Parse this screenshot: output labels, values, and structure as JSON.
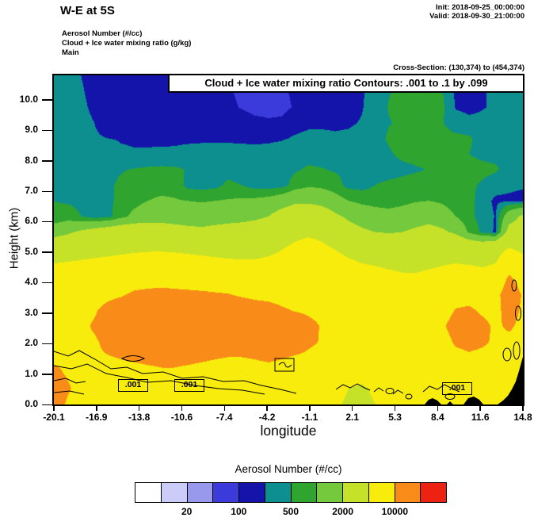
{
  "header": {
    "title": "W-E at 5S",
    "init": "Init: 2018-09-25_00:00:00",
    "valid": "Valid: 2018-09-30_21:00:00",
    "field_lines": [
      "Aerosol Number  (#/cc)",
      "Cloud + Ice water mixing ratio  (g/kg)",
      "Main"
    ],
    "cross_section": "Cross-Section: (130,374) to (454,374)"
  },
  "plot": {
    "banner": "Cloud + Ice water mixing ratio Contours: .001 to .1 by .099",
    "xlabel": "longitude",
    "ylabel": "Height (km)",
    "x_ticks": [
      "-20.1",
      "-16.9",
      "-13.8",
      "-10.6",
      "-7.4",
      "-4.2",
      "-1.1",
      "2.1",
      "5.3",
      "8.4",
      "11.6",
      "14.8"
    ],
    "y_ticks": [
      "0.0",
      "1.0",
      "2.0",
      "3.0",
      "4.0",
      "5.0",
      "6.0",
      "7.0",
      "8.0",
      "9.0",
      "10.0"
    ],
    "contour_labels": [
      ".001",
      ".001",
      ".001"
    ]
  },
  "colorbar": {
    "title": "Aerosol Number  (#/cc)",
    "tick_labels": [
      "20",
      "100",
      "500",
      "2000",
      "10000"
    ],
    "tick_positions": [
      2,
      4,
      6,
      8,
      10
    ]
  },
  "chart_data": {
    "type": "heatmap",
    "title": "W-E at 5S",
    "fill_variable": "Aerosol Number (#/cc)",
    "line_variable": "Cloud + Ice water mixing ratio (g/kg)",
    "contour_note": "Cloud + Ice water mixing ratio Contours: .001 to .1 by .099",
    "xlabel": "longitude",
    "ylabel": "Height (km)",
    "x_range": [
      -20.1,
      14.8
    ],
    "y_range": [
      0,
      10.8
    ],
    "x_tick_values": [
      -20.1,
      -16.9,
      -13.8,
      -10.6,
      -7.4,
      -4.2,
      -1.1,
      2.1,
      5.3,
      8.4,
      11.6,
      14.8
    ],
    "y_tick_values": [
      0,
      1,
      2,
      3,
      4,
      5,
      6,
      7,
      8,
      9,
      10
    ],
    "levels": [
      10,
      20,
      50,
      100,
      200,
      500,
      1000,
      2000,
      5000,
      10000,
      20000
    ],
    "level_colors": [
      "#ffffff",
      "#ccccf8",
      "#9898ec",
      "#3b3bdc",
      "#1414aa",
      "#0e8f8f",
      "#2fa42f",
      "#74c93c",
      "#c6e228",
      "#f8ec0c",
      "#f98c18",
      "#ee2212"
    ],
    "colorbar_boundary_labels": [
      20,
      100,
      500,
      2000,
      10000
    ],
    "terrain_color": "#000000",
    "overlay_contour_levels": ".001 to .1 by .099",
    "overlay_contour_label": ".001",
    "grid_note": "aerosol number (#/cc), rows bottom(0 km) to top(10.8 km), 36 columns spanning lon -20.1 to 14.8",
    "values_grid": [
      [
        12000,
        9500,
        8000,
        7500,
        7200,
        7000,
        7200,
        7500,
        7800,
        8000,
        7800,
        7500,
        7200,
        7000,
        7000,
        7200,
        7500,
        7300,
        7000,
        6800,
        6500,
        5500,
        4500,
        4200,
        5000,
        6000,
        6500,
        6800,
        7000,
        7000,
        6800,
        6500,
        6800,
        7000,
        7200,
        7500
      ],
      [
        13000,
        10500,
        8500,
        8000,
        7800,
        7600,
        7800,
        8000,
        8200,
        8500,
        8200,
        8000,
        7800,
        7500,
        7500,
        7800,
        8000,
        7800,
        7500,
        7200,
        7000,
        6000,
        5000,
        4600,
        5500,
        6500,
        7000,
        7200,
        7500,
        7500,
        7200,
        7000,
        7200,
        7500,
        7800,
        8000
      ],
      [
        11000,
        9500,
        8800,
        8500,
        8500,
        8800,
        9000,
        9200,
        9500,
        9500,
        9200,
        9000,
        8800,
        8500,
        8500,
        8800,
        9000,
        8800,
        8500,
        8200,
        8000,
        7200,
        6500,
        6000,
        6800,
        7500,
        7800,
        8000,
        8200,
        8200,
        8000,
        7800,
        8000,
        8200,
        8500,
        8800
      ],
      [
        9000,
        9200,
        9500,
        9500,
        9800,
        10200,
        10500,
        10800,
        11000,
        11000,
        10800,
        10500,
        10200,
        10000,
        10000,
        10200,
        10500,
        10200,
        9800,
        9500,
        9200,
        8800,
        8500,
        8200,
        8500,
        8800,
        9000,
        8800,
        8500,
        8500,
        9000,
        9500,
        9200,
        9000,
        9200,
        9000
      ],
      [
        8500,
        8800,
        9200,
        9500,
        11000,
        12500,
        13000,
        13500,
        13800,
        14000,
        13800,
        13500,
        13200,
        13000,
        13000,
        13200,
        13000,
        12500,
        11500,
        10500,
        9800,
        9500,
        9200,
        9000,
        8800,
        8500,
        8200,
        8000,
        8200,
        8500,
        10500,
        11000,
        10500,
        9500,
        9200,
        9000
      ],
      [
        8000,
        8500,
        9000,
        10500,
        12500,
        13500,
        14200,
        14800,
        15000,
        15000,
        14800,
        14500,
        14200,
        14000,
        14000,
        14200,
        13800,
        13000,
        12000,
        10800,
        9800,
        9500,
        9200,
        9000,
        8800,
        8500,
        8200,
        8000,
        8500,
        9500,
        11500,
        11800,
        10800,
        9500,
        10500,
        9200
      ],
      [
        7500,
        8000,
        8500,
        9500,
        11500,
        12800,
        13500,
        13800,
        14000,
        13800,
        13500,
        13200,
        13000,
        12800,
        12500,
        12000,
        11500,
        10500,
        9800,
        9500,
        9200,
        8800,
        8500,
        8200,
        8000,
        7800,
        7500,
        7500,
        7800,
        8200,
        10200,
        10500,
        9500,
        9000,
        11500,
        9500
      ],
      [
        7000,
        7200,
        7500,
        8000,
        8800,
        9500,
        10800,
        11200,
        11500,
        11200,
        11000,
        10800,
        10500,
        10200,
        9500,
        9000,
        8800,
        8500,
        8200,
        8000,
        7800,
        7500,
        7200,
        7000,
        6800,
        6500,
        6500,
        6800,
        7000,
        7200,
        8500,
        8800,
        8500,
        9000,
        12000,
        9800
      ],
      [
        6000,
        6200,
        6500,
        6800,
        7200,
        7500,
        7800,
        8000,
        8200,
        8000,
        7800,
        7500,
        7200,
        7000,
        6800,
        6800,
        7000,
        7200,
        7500,
        7800,
        7500,
        7000,
        6500,
        6200,
        6000,
        5800,
        5500,
        5500,
        5800,
        6000,
        6500,
        6800,
        6500,
        7000,
        10800,
        8500
      ],
      [
        5000,
        5200,
        5400,
        5600,
        5800,
        6000,
        6200,
        6400,
        6500,
        6400,
        6200,
        6000,
        5800,
        5600,
        5500,
        5500,
        5800,
        6200,
        6800,
        7200,
        6800,
        6200,
        5500,
        5000,
        4800,
        4500,
        4300,
        4200,
        4500,
        4800,
        5000,
        4800,
        4500,
        5000,
        7800,
        6200
      ],
      [
        3000,
        3200,
        3500,
        3800,
        4000,
        4200,
        4400,
        4500,
        4500,
        4400,
        4200,
        4000,
        3800,
        3600,
        3500,
        3600,
        4000,
        4800,
        5500,
        6000,
        5500,
        4800,
        4000,
        3600,
        3400,
        3200,
        3200,
        3400,
        3600,
        3800,
        3500,
        3200,
        3000,
        3500,
        5000,
        4200
      ],
      [
        1500,
        1800,
        2200,
        2500,
        2800,
        3000,
        3000,
        2800,
        2600,
        2500,
        2400,
        2300,
        2400,
        2500,
        2500,
        2600,
        2800,
        3500,
        4200,
        4500,
        4200,
        3200,
        2500,
        2200,
        2000,
        1900,
        2000,
        2200,
        2400,
        2200,
        1800,
        900,
        400,
        150,
        2500,
        2600
      ],
      [
        600,
        700,
        500,
        300,
        350,
        800,
        1200,
        1500,
        1600,
        1500,
        1400,
        1400,
        1500,
        1600,
        1700,
        1800,
        2000,
        2500,
        2800,
        3000,
        2800,
        2200,
        1800,
        1500,
        1300,
        1200,
        1300,
        1500,
        1600,
        1400,
        1000,
        600,
        350,
        180,
        1500,
        2200
      ],
      [
        500,
        450,
        400,
        380,
        420,
        600,
        800,
        1000,
        1100,
        1050,
        1000,
        950,
        1000,
        1050,
        1100,
        1150,
        1250,
        1500,
        1800,
        1800,
        1600,
        1300,
        1000,
        850,
        800,
        800,
        850,
        950,
        1000,
        900,
        700,
        650,
        300,
        150,
        150,
        120
      ],
      [
        420,
        400,
        380,
        400,
        450,
        550,
        650,
        750,
        800,
        780,
        350,
        320,
        350,
        600,
        500,
        300,
        280,
        300,
        700,
        900,
        850,
        700,
        350,
        330,
        500,
        600,
        650,
        700,
        720,
        680,
        620,
        580,
        450,
        300,
        250,
        230
      ],
      [
        350,
        340,
        360,
        400,
        440,
        480,
        520,
        560,
        580,
        560,
        480,
        420,
        380,
        320,
        280,
        270,
        280,
        320,
        450,
        550,
        520,
        450,
        380,
        350,
        320,
        300,
        380,
        450,
        520,
        560,
        600,
        620,
        600,
        550,
        350,
        300
      ],
      [
        300,
        290,
        300,
        310,
        280,
        220,
        210,
        215,
        220,
        230,
        260,
        290,
        310,
        300,
        280,
        260,
        270,
        300,
        350,
        380,
        360,
        320,
        300,
        290,
        300,
        450,
        600,
        650,
        650,
        620,
        600,
        500,
        420,
        400,
        380,
        360
      ],
      [
        220,
        215,
        210,
        205,
        200,
        190,
        185,
        180,
        175,
        170,
        165,
        160,
        160,
        158,
        158,
        160,
        165,
        180,
        220,
        250,
        240,
        220,
        230,
        260,
        350,
        550,
        650,
        680,
        660,
        640,
        600,
        550,
        350,
        300,
        290,
        280
      ],
      [
        230,
        225,
        215,
        200,
        180,
        165,
        155,
        148,
        142,
        140,
        138,
        136,
        135,
        138,
        130,
        115,
        108,
        110,
        130,
        160,
        170,
        175,
        180,
        210,
        300,
        480,
        550,
        560,
        540,
        520,
        300,
        250,
        240,
        250,
        255,
        260
      ],
      [
        225,
        220,
        210,
        190,
        170,
        155,
        148,
        142,
        138,
        135,
        132,
        130,
        128,
        115,
        95,
        82,
        80,
        85,
        105,
        130,
        140,
        150,
        160,
        190,
        280,
        520,
        620,
        600,
        580,
        560,
        180,
        150,
        190,
        220,
        260,
        280
      ],
      [
        220,
        215,
        205,
        185,
        168,
        152,
        145,
        140,
        135,
        132,
        130,
        128,
        120,
        105,
        90,
        85,
        86,
        90,
        110,
        128,
        135,
        145,
        155,
        185,
        260,
        480,
        580,
        570,
        550,
        520,
        150,
        130,
        180,
        250,
        310,
        320
      ],
      [
        218,
        212,
        200,
        182,
        165,
        150,
        143,
        138,
        134,
        130,
        128,
        126,
        118,
        103,
        92,
        88,
        90,
        95,
        112,
        130,
        138,
        148,
        158,
        188,
        255,
        470,
        570,
        560,
        540,
        510,
        145,
        128,
        175,
        245,
        305,
        315
      ]
    ]
  }
}
